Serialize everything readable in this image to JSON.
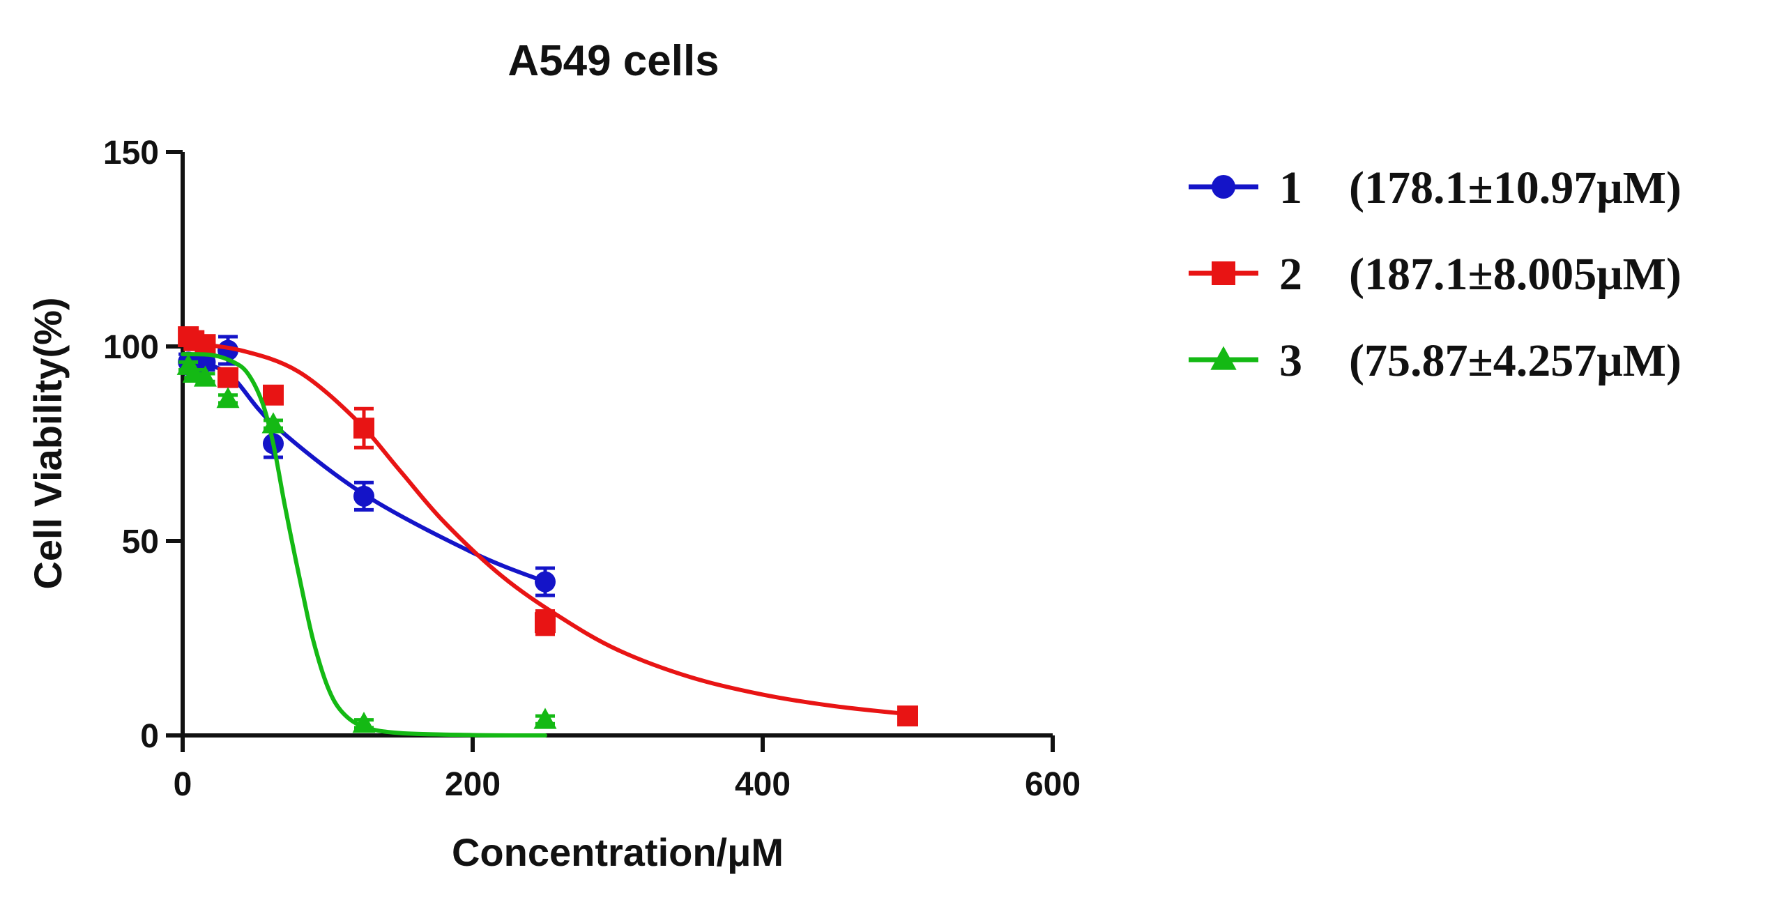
{
  "chart_data": {
    "type": "line",
    "title": "A549 cells",
    "xlabel": "Concentration/μM",
    "ylabel": "Cell Viability(%)",
    "xlim": [
      0,
      600
    ],
    "ylim": [
      0,
      150
    ],
    "xticks": [
      0,
      200,
      400,
      600
    ],
    "yticks": [
      0,
      50,
      100,
      150
    ],
    "grid": false,
    "legend_position": "right",
    "series": [
      {
        "name": "1",
        "ic50_label": "(178.1±10.97μM)",
        "color": "#1414c8",
        "marker": "circle",
        "x": [
          3.9,
          7.8,
          15.6,
          31.25,
          62.5,
          125,
          250
        ],
        "y": [
          96,
          95,
          96,
          99,
          75,
          61.5,
          39.5
        ],
        "error": [
          2,
          2,
          2,
          3.5,
          3.5,
          3.5,
          3.5
        ],
        "fit_x": [
          0,
          31.25,
          62.5,
          125,
          200,
          250
        ],
        "fit_y": [
          97,
          93,
          80,
          62,
          47,
          39.5
        ]
      },
      {
        "name": "2",
        "ic50_label": "(187.1±8.005μM)",
        "color": "#e81414",
        "marker": "square",
        "x": [
          3.9,
          7.8,
          15.6,
          31.25,
          62.5,
          125,
          250,
          500
        ],
        "y": [
          102.5,
          101.5,
          100.5,
          92,
          87.5,
          79,
          29,
          5
        ],
        "error": [
          1.5,
          1.5,
          1.5,
          2,
          2,
          5,
          3,
          1
        ],
        "fit_x": [
          0,
          40,
          80,
          120,
          150,
          180,
          220,
          260,
          300,
          350,
          400,
          450,
          500
        ],
        "fit_y": [
          101,
          99,
          93.5,
          81,
          68,
          55,
          41,
          30.5,
          22,
          15,
          10.5,
          7.5,
          5.5
        ]
      },
      {
        "name": "3",
        "ic50_label": "(75.87±4.257μM)",
        "color": "#14b914",
        "marker": "triangle",
        "x": [
          3.9,
          7.8,
          15.6,
          31.25,
          62.5,
          125,
          250
        ],
        "y": [
          95,
          93,
          92,
          86.5,
          80,
          3,
          4
        ],
        "error": [
          1,
          1,
          1,
          1,
          1,
          1,
          1
        ],
        "fit_x": [
          0,
          20,
          35,
          45,
          55,
          62.5,
          70,
          75.87,
          82,
          90,
          100,
          110,
          125,
          150,
          200,
          250
        ],
        "fit_y": [
          98,
          97.8,
          96,
          93,
          85.5,
          75,
          60,
          49,
          38,
          24.5,
          12.5,
          6,
          2.2,
          0.6,
          0.1,
          0
        ]
      }
    ]
  }
}
